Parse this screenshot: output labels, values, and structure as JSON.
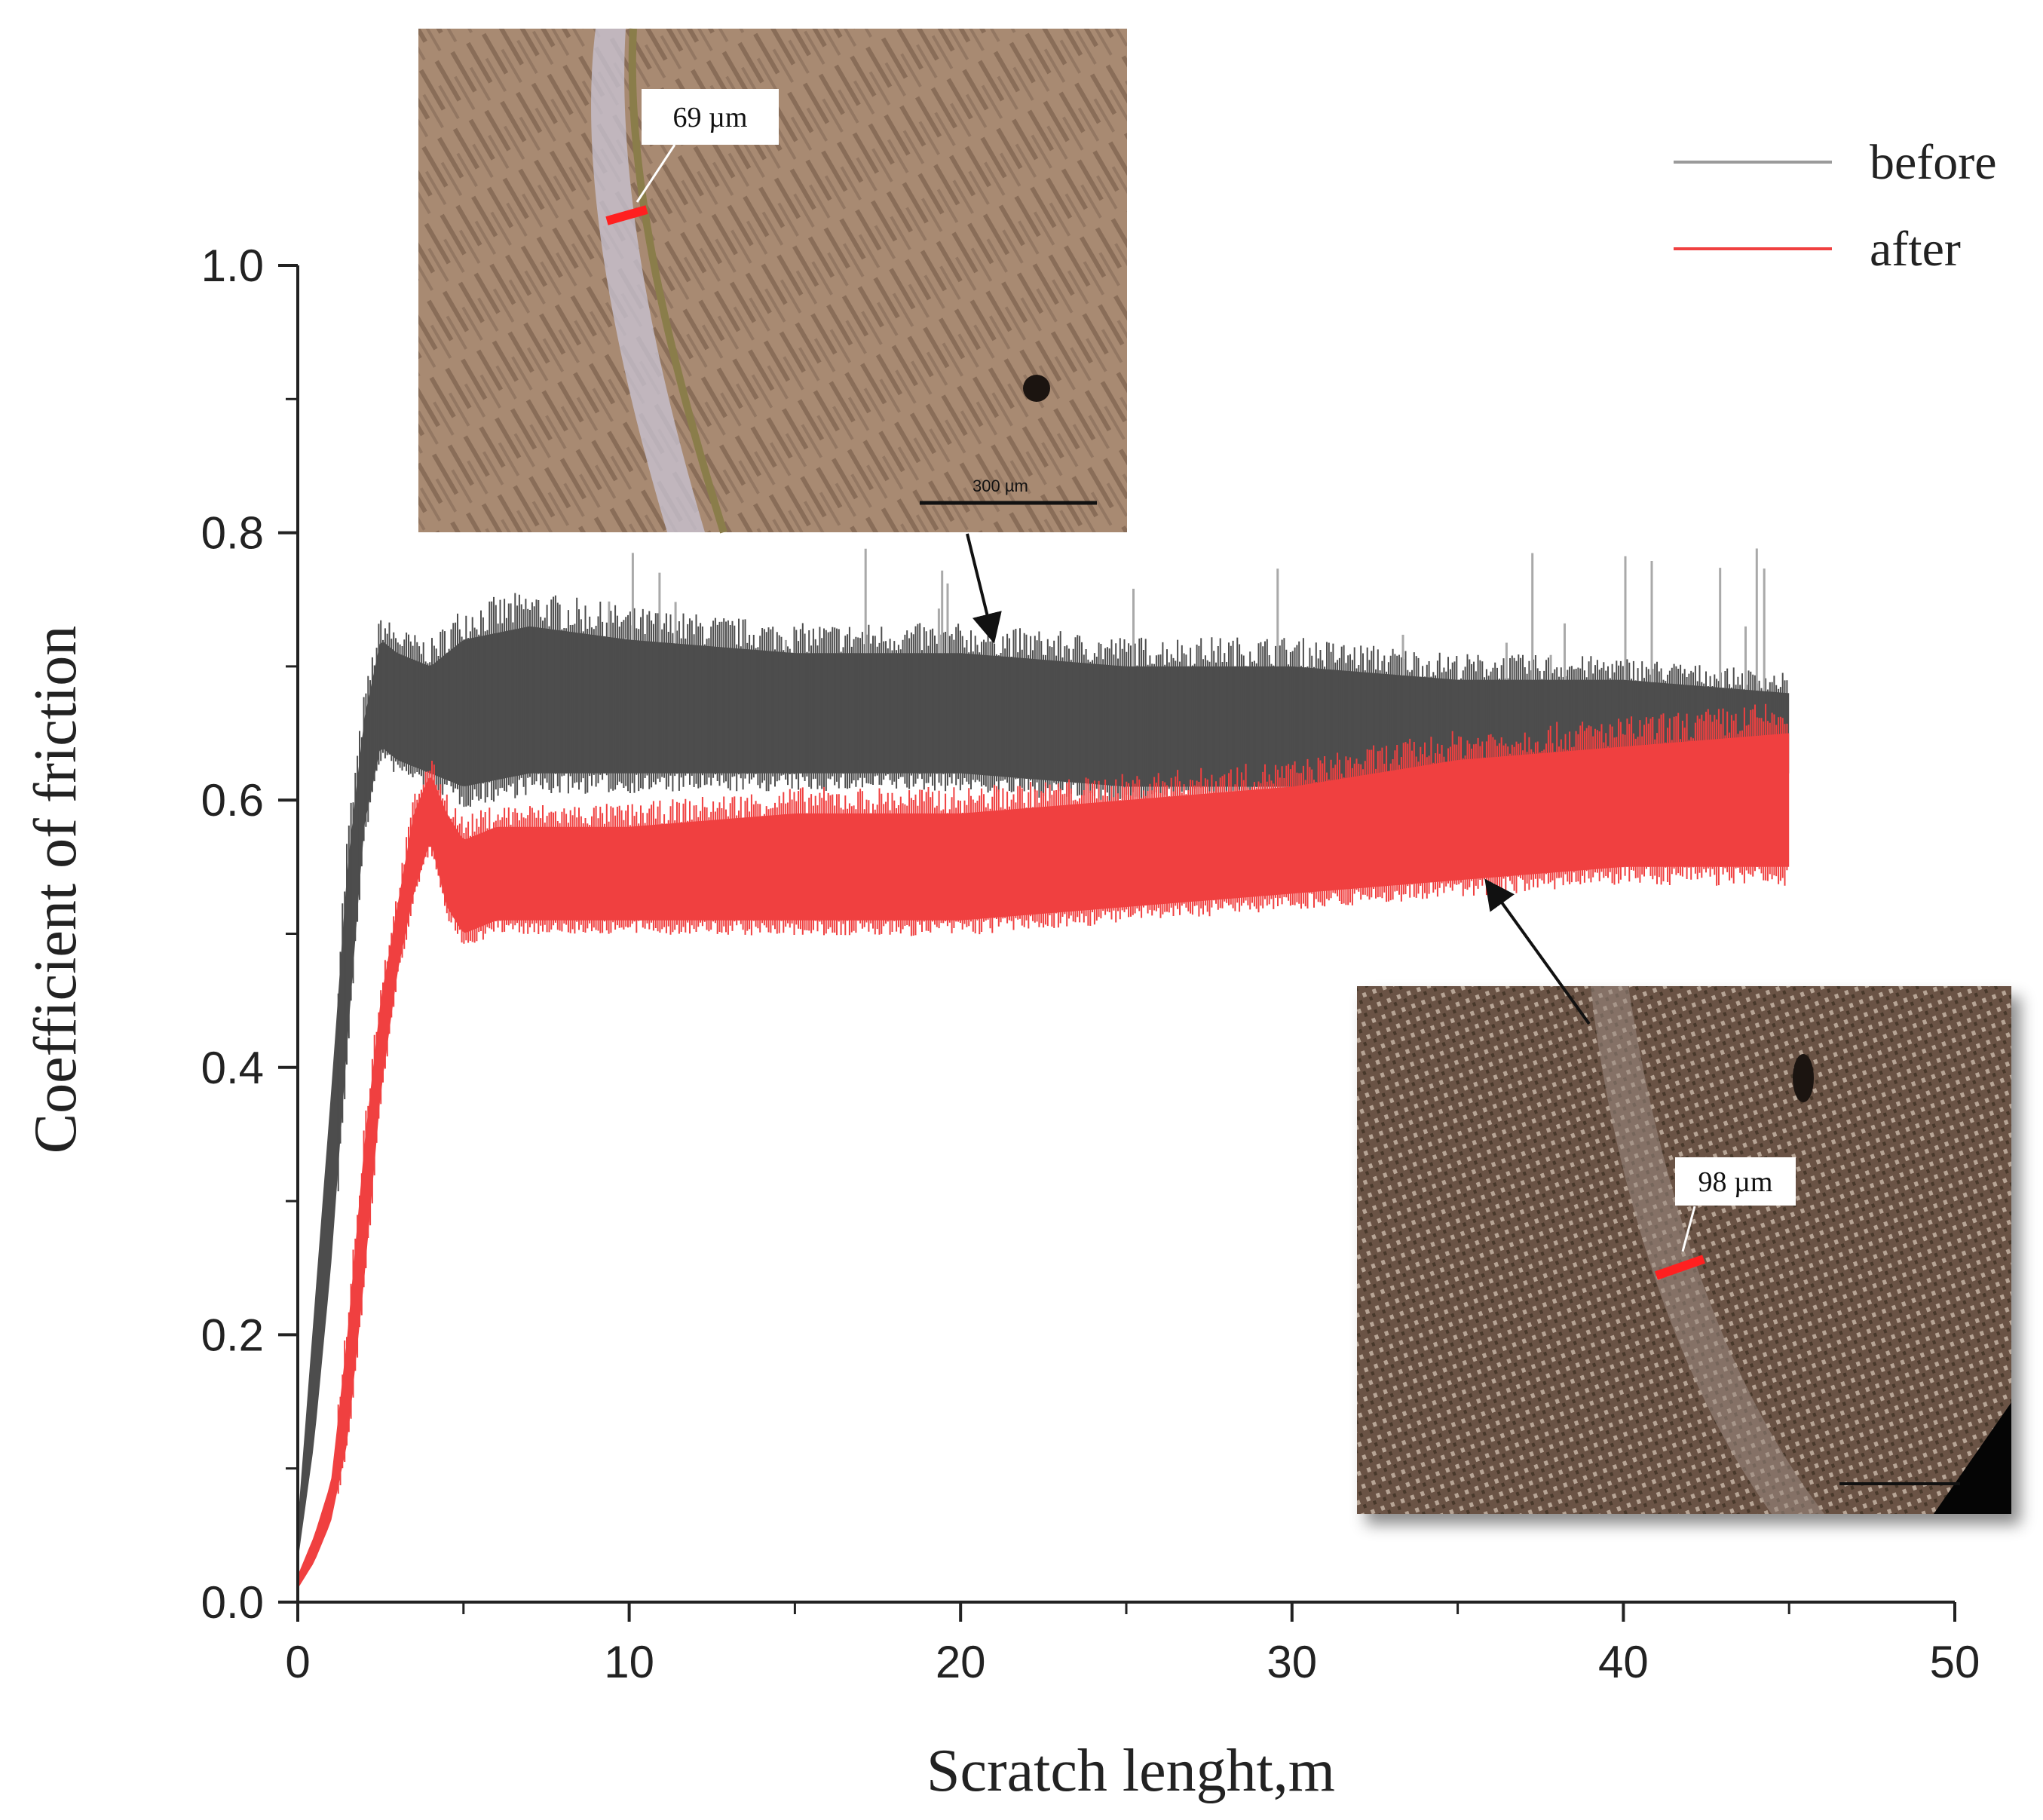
{
  "chart_data": {
    "type": "line",
    "xlabel": "Scratch lenght,m",
    "ylabel": "Coefficient of friction",
    "xlim": [
      0,
      50
    ],
    "ylim": [
      0,
      1.0
    ],
    "xticks": [
      "0",
      "10",
      "20",
      "30",
      "40",
      "50"
    ],
    "yticks": [
      "0.0",
      "0.2",
      "0.4",
      "0.6",
      "0.8",
      "1.0"
    ],
    "grid": false,
    "legend_position": "top-right",
    "series": [
      {
        "name": "before",
        "color": "#4d4d4d",
        "x": [
          0,
          0.5,
          1.0,
          1.5,
          2.0,
          2.5,
          3.0,
          4.0,
          5.0,
          7.0,
          10.0,
          15.0,
          20.0,
          25.0,
          30.0,
          35.0,
          40.0,
          45.0
        ],
        "y_min": [
          0.03,
          0.12,
          0.25,
          0.42,
          0.58,
          0.64,
          0.63,
          0.62,
          0.61,
          0.62,
          0.62,
          0.62,
          0.62,
          0.61,
          0.61,
          0.61,
          0.62,
          0.62
        ],
        "y_max": [
          0.06,
          0.22,
          0.38,
          0.55,
          0.66,
          0.72,
          0.71,
          0.7,
          0.72,
          0.73,
          0.72,
          0.71,
          0.71,
          0.7,
          0.7,
          0.69,
          0.69,
          0.68
        ],
        "spike_max": 0.79
      },
      {
        "name": "after",
        "color": "#f04040",
        "x": [
          0,
          0.5,
          1.0,
          1.5,
          2.0,
          2.5,
          3.0,
          3.5,
          4.0,
          4.5,
          5.0,
          6.0,
          10.0,
          15.0,
          20.0,
          25.0,
          30.0,
          35.0,
          40.0,
          45.0
        ],
        "y_min": [
          0.01,
          0.03,
          0.06,
          0.12,
          0.24,
          0.38,
          0.47,
          0.53,
          0.57,
          0.52,
          0.5,
          0.51,
          0.51,
          0.51,
          0.51,
          0.52,
          0.53,
          0.54,
          0.55,
          0.55
        ],
        "y_max": [
          0.02,
          0.05,
          0.09,
          0.2,
          0.34,
          0.45,
          0.52,
          0.59,
          0.62,
          0.59,
          0.57,
          0.58,
          0.58,
          0.59,
          0.59,
          0.6,
          0.61,
          0.63,
          0.64,
          0.65
        ]
      }
    ],
    "annotations": [
      {
        "label": "69 µm",
        "scale_bar": "300 µm",
        "points_to_series": "before",
        "points_to_x": 21
      },
      {
        "label": "98 µm",
        "points_to_series": "after",
        "points_to_x": 36
      }
    ]
  }
}
